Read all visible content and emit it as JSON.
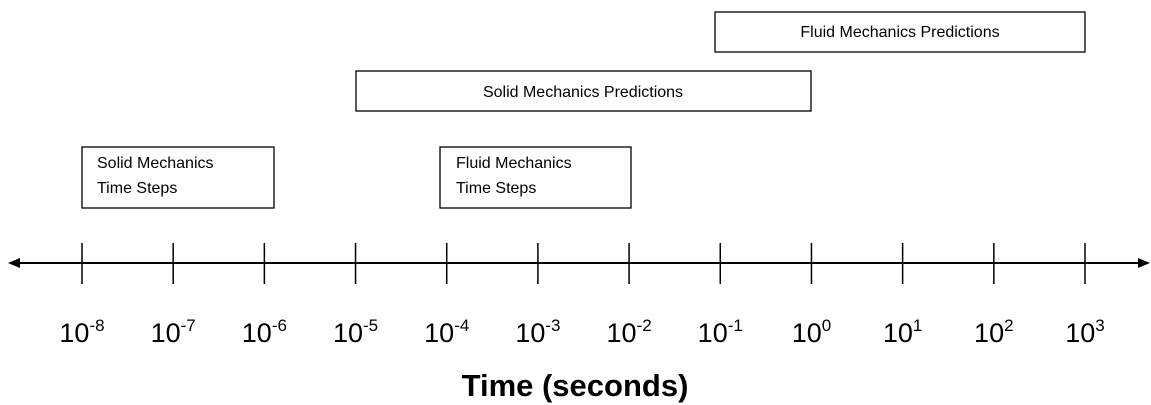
{
  "axis": {
    "title": "Time (seconds)",
    "ticks": [
      {
        "base": "10",
        "exponent": "-8"
      },
      {
        "base": "10",
        "exponent": "-7"
      },
      {
        "base": "10",
        "exponent": "-6"
      },
      {
        "base": "10",
        "exponent": "-5"
      },
      {
        "base": "10",
        "exponent": "-4"
      },
      {
        "base": "10",
        "exponent": "-3"
      },
      {
        "base": "10",
        "exponent": "-2"
      },
      {
        "base": "10",
        "exponent": "-1"
      },
      {
        "base": "10",
        "exponent": "0"
      },
      {
        "base": "10",
        "exponent": "1"
      },
      {
        "base": "10",
        "exponent": "2"
      },
      {
        "base": "10",
        "exponent": "3"
      }
    ]
  },
  "boxes": [
    {
      "lines": [
        "Fluid Mechanics Predictions"
      ]
    },
    {
      "lines": [
        "Solid Mechanics Predictions"
      ]
    },
    {
      "lines": [
        "Solid Mechanics",
        "Time Steps"
      ]
    },
    {
      "lines": [
        "Fluid Mechanics",
        "Time Steps"
      ]
    }
  ]
}
